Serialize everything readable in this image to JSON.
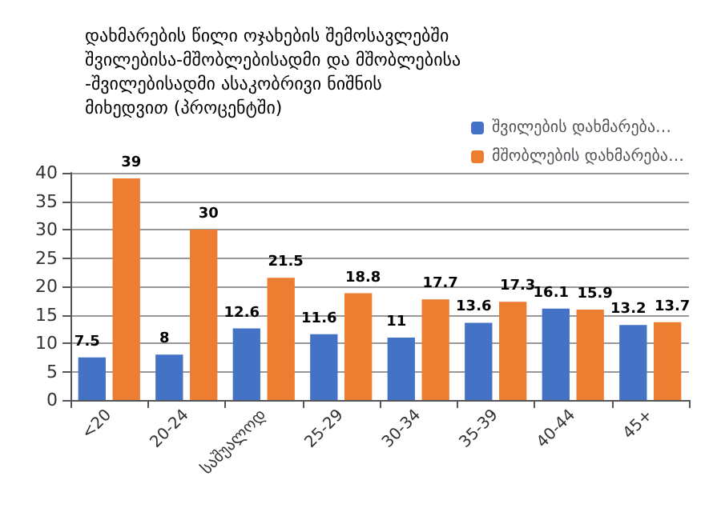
{
  "chart_data": {
    "type": "bar",
    "title": "დახმარების წილი ოჯახების შემოსავლებში შვილებისა-მშობლებისადმი და მშობლებისა -შვილებისადმი ასაკობრივი ნიშნის მიხედვით (პროცენტში)",
    "categories": [
      "<20",
      "20-24",
      "საშუალოდ",
      "25-29",
      "30-34",
      "35-39",
      "40-44",
      "45+"
    ],
    "series": [
      {
        "name": "შვილების დახმარება…",
        "color": "#4472c4",
        "values": [
          7.5,
          8,
          12.6,
          11.6,
          11,
          13.6,
          16.1,
          13.2
        ]
      },
      {
        "name": "მშობლების დახმარება…",
        "color": "#ed7d31",
        "values": [
          39,
          30,
          21.5,
          18.8,
          17.7,
          17.3,
          15.9,
          13.7
        ]
      }
    ],
    "ylim": [
      0,
      40
    ],
    "yticks": [
      0,
      5,
      10,
      15,
      20,
      25,
      30,
      35,
      40
    ],
    "grid": "y",
    "legend": "top right",
    "data_labels": true
  }
}
